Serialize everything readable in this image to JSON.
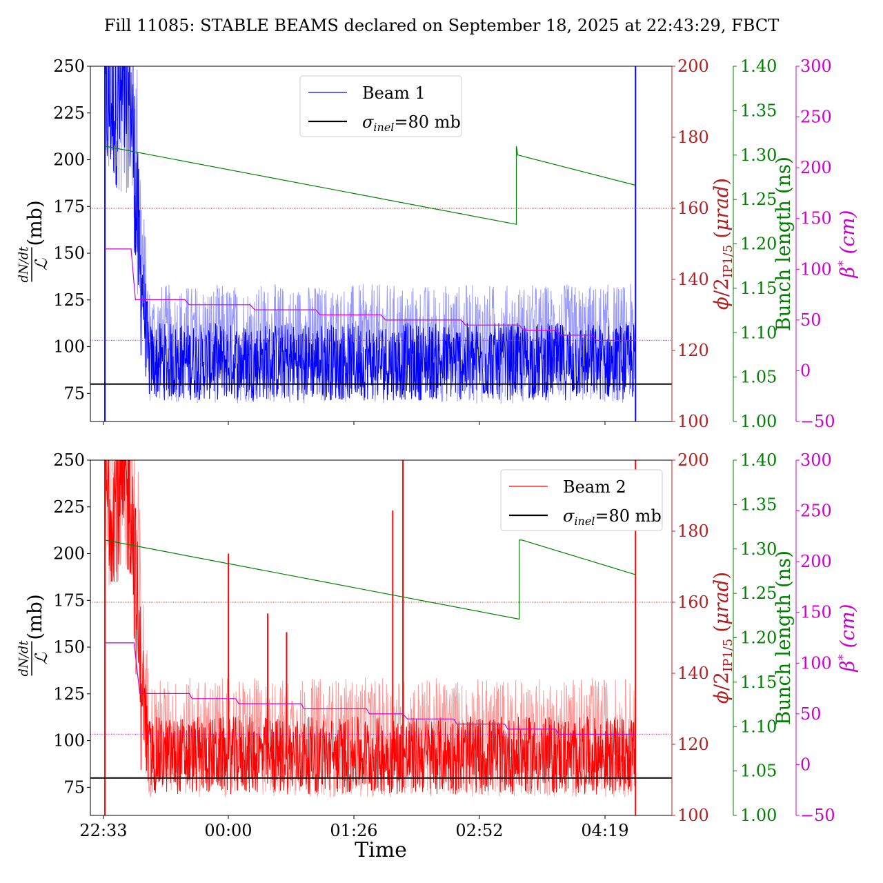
{
  "title": "Fill 11085: STABLE BEAMS declared on September 18, 2025 at 22:43:29, FBCT",
  "chart_data": [
    {
      "type": "line",
      "panel": "top",
      "xlabel": "",
      "x_tick_labels": [
        "22:33",
        "00:00",
        "01:26",
        "02:52",
        "04:19"
      ],
      "x_ticks_shown": false,
      "xlim_minutes": [
        -10,
        390
      ],
      "y_left": {
        "label": "dN/dt / ℒ (mb)",
        "lim": [
          60,
          250
        ],
        "ticks": [
          "75",
          "100",
          "125",
          "150",
          "175",
          "200",
          "225",
          "250"
        ]
      },
      "y_right_1": {
        "label": "φ/2 IP1/5 (μrad)",
        "lim": [
          100,
          200
        ],
        "ticks": [
          "100",
          "120",
          "140",
          "160",
          "180",
          "200"
        ],
        "color": "#b22222"
      },
      "y_right_2": {
        "label": "Bunch length (ns)",
        "lim": [
          1.0,
          1.4
        ],
        "ticks": [
          "1.00",
          "1.05",
          "1.10",
          "1.15",
          "1.20",
          "1.25",
          "1.30",
          "1.35",
          "1.40"
        ],
        "color": "#008000"
      },
      "y_right_3": {
        "label": "β* (cm)",
        "lim": [
          -50,
          300
        ],
        "ticks": [
          "−50",
          "0",
          "50",
          "100",
          "150",
          "200",
          "250",
          "300"
        ],
        "color": "#cc00cc"
      },
      "legend": {
        "placement": "upper-center",
        "entries": [
          {
            "label": "Beam 1",
            "color": "#0000ff"
          },
          {
            "label": "σinel=80 mb",
            "color": "#000000"
          }
        ]
      },
      "series": [
        {
          "name": "Beam 1",
          "color": "#0000ff",
          "x_range": [
            0,
            365
          ],
          "note_levels": {
            "initial_peak": 250,
            "after_leveling": 80,
            "spread_to": 125
          }
        },
        {
          "name": "σinel=80 mb",
          "color": "#000000",
          "y": 80
        },
        {
          "name": "Bunch length",
          "color": "#008000",
          "axis": "y_right_2",
          "points": [
            [
              0,
              1.31
            ],
            [
              283,
              1.222
            ],
            [
              283,
              1.31
            ],
            [
              284,
              1.3
            ],
            [
              365,
              1.266
            ]
          ]
        },
        {
          "name": "β*",
          "color": "#cc00cc",
          "axis": "y_right_3",
          "steps": [
            [
              0,
              120
            ],
            [
              18,
              120
            ],
            [
              21,
              70
            ],
            [
              55,
              70
            ],
            [
              58,
              65
            ],
            [
              100,
              65
            ],
            [
              103,
              60
            ],
            [
              145,
              60
            ],
            [
              148,
              55
            ],
            [
              190,
              55
            ],
            [
              193,
              50
            ],
            [
              245,
              50
            ],
            [
              248,
              45
            ],
            [
              285,
              45
            ],
            [
              288,
              40
            ],
            [
              310,
              40
            ],
            [
              313,
              35
            ],
            [
              335,
              35
            ],
            [
              338,
              30
            ],
            [
              365,
              30
            ]
          ]
        }
      ],
      "reference_lines": [
        {
          "axis": "y_right_1",
          "value": 160,
          "color": "#b22222"
        },
        {
          "axis": "y_right_3",
          "value": 30,
          "color": "#cc00cc"
        }
      ]
    },
    {
      "type": "line",
      "panel": "bottom",
      "xlabel": "Time",
      "x_tick_labels": [
        "22:33",
        "00:00",
        "01:26",
        "02:52",
        "04:19"
      ],
      "xlim_minutes": [
        -10,
        390
      ],
      "y_left": {
        "label": "dN/dt / ℒ (mb)",
        "lim": [
          60,
          250
        ],
        "ticks": [
          "75",
          "100",
          "125",
          "150",
          "175",
          "200",
          "225",
          "250"
        ]
      },
      "y_right_1": {
        "label": "φ/2 IP1/5 (μrad)",
        "lim": [
          100,
          200
        ],
        "ticks": [
          "100",
          "120",
          "140",
          "160",
          "180",
          "200"
        ],
        "color": "#b22222"
      },
      "y_right_2": {
        "label": "Bunch length (ns)",
        "lim": [
          1.0,
          1.4
        ],
        "ticks": [
          "1.00",
          "1.05",
          "1.10",
          "1.15",
          "1.20",
          "1.25",
          "1.30",
          "1.35",
          "1.40"
        ],
        "color": "#008000"
      },
      "y_right_3": {
        "label": "β* (cm)",
        "lim": [
          -50,
          300
        ],
        "ticks": [
          "−50",
          "0",
          "50",
          "100",
          "150",
          "200",
          "250",
          "300"
        ],
        "color": "#cc00cc"
      },
      "legend": {
        "placement": "upper-right",
        "entries": [
          {
            "label": "Beam 2",
            "color": "#ff0000"
          },
          {
            "label": "σinel=80 mb",
            "color": "#000000"
          }
        ]
      },
      "series": [
        {
          "name": "Beam 2",
          "color": "#ff0000",
          "x_range": [
            0,
            365
          ],
          "spikes": [
            [
              85,
              200
            ],
            [
              112,
              168
            ],
            [
              125,
              158
            ],
            [
              198,
              223
            ],
            [
              205,
              250
            ]
          ]
        },
        {
          "name": "σinel=80 mb",
          "color": "#000000",
          "y": 80
        },
        {
          "name": "Bunch length",
          "color": "#008000",
          "axis": "y_right_2",
          "points": [
            [
              0,
              1.31
            ],
            [
              285,
              1.221
            ],
            [
              285,
              1.31
            ],
            [
              287,
              1.31
            ],
            [
              365,
              1.271
            ]
          ]
        },
        {
          "name": "β*",
          "color": "#cc00cc",
          "axis": "y_right_3",
          "steps": [
            [
              0,
              120
            ],
            [
              20,
              120
            ],
            [
              24,
              70
            ],
            [
              58,
              70
            ],
            [
              60,
              65
            ],
            [
              90,
              65
            ],
            [
              92,
              60
            ],
            [
              135,
              60
            ],
            [
              137,
              55
            ],
            [
              180,
              55
            ],
            [
              182,
              50
            ],
            [
              205,
              50
            ],
            [
              208,
              45
            ],
            [
              240,
              45
            ],
            [
              242,
              40
            ],
            [
              275,
              40
            ],
            [
              277,
              35
            ],
            [
              310,
              35
            ],
            [
              312,
              30
            ],
            [
              365,
              30
            ]
          ]
        }
      ],
      "reference_lines": [
        {
          "axis": "y_right_1",
          "value": 160,
          "color": "#b22222"
        },
        {
          "axis": "y_right_3",
          "value": 30,
          "color": "#cc00cc"
        }
      ]
    }
  ]
}
